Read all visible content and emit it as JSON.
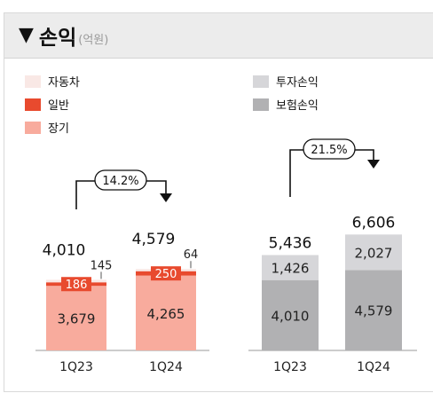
{
  "header": {
    "title": "손익",
    "unit": "(억원)",
    "icon": "down-triangle-icon"
  },
  "colors": {
    "auto": "#f9e8e5",
    "general": "#e84a2e",
    "longterm": "#f8ab9d",
    "investment": "#d6d6d9",
    "insurance": "#b1b1b3",
    "axis": "#9a9a9a"
  },
  "chart_data": [
    {
      "type": "bar",
      "stacked": true,
      "categories": [
        "1Q23",
        "1Q24"
      ],
      "series": [
        {
          "name": "장기",
          "values": [
            3679,
            4265
          ]
        },
        {
          "name": "일반",
          "values": [
            186,
            250
          ]
        },
        {
          "name": "자동차",
          "values": [
            145,
            64
          ]
        }
      ],
      "totals": [
        4010,
        4579
      ],
      "growth": "14.2%",
      "legend_position": "top-left"
    },
    {
      "type": "bar",
      "stacked": true,
      "categories": [
        "1Q23",
        "1Q24"
      ],
      "series": [
        {
          "name": "보험손익",
          "values": [
            4010,
            4579
          ]
        },
        {
          "name": "투자손익",
          "values": [
            1426,
            2027
          ]
        }
      ],
      "totals": [
        5436,
        6606
      ],
      "growth": "21.5%",
      "legend_position": "top-left"
    }
  ],
  "labels": {
    "left": {
      "longterm": [
        "3,679",
        "4,265"
      ],
      "general": [
        "186",
        "250"
      ],
      "auto": [
        "145",
        "64"
      ],
      "totals": [
        "4,010",
        "4,579"
      ]
    },
    "right": {
      "insurance": [
        "4,010",
        "4,579"
      ],
      "investment": [
        "1,426",
        "2,027"
      ],
      "totals": [
        "5,436",
        "6,606"
      ]
    }
  }
}
